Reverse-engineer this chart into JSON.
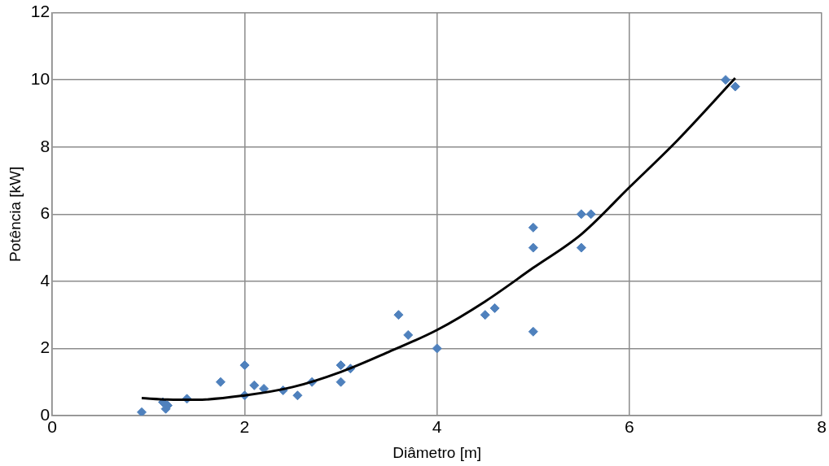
{
  "chart_data": {
    "type": "scatter",
    "xlabel": "Diâmetro [m]",
    "ylabel": "Potência [kW]",
    "xlim": [
      0,
      8
    ],
    "xticks": [
      0,
      2,
      4,
      6,
      8
    ],
    "ylim": [
      0,
      12
    ],
    "yticks": [
      0,
      2,
      4,
      6,
      8,
      10,
      12
    ],
    "grid": true,
    "legend": false,
    "marker": "diamond",
    "series": [
      {
        "color": "#4f81bd",
        "x": [
          0.93,
          1.15,
          1.18,
          1.2,
          1.4,
          1.75,
          2.0,
          2.0,
          2.1,
          2.2,
          2.4,
          2.55,
          2.7,
          3.0,
          3.0,
          3.1,
          3.6,
          3.7,
          4.0,
          4.5,
          4.6,
          5.0,
          5.0,
          5.0,
          5.5,
          5.5,
          5.6,
          7.0,
          7.1
        ],
        "values": [
          0.1,
          0.4,
          0.2,
          0.3,
          0.5,
          1.0,
          1.5,
          0.6,
          0.9,
          0.8,
          0.75,
          0.6,
          1.0,
          1.5,
          1.0,
          1.4,
          3.0,
          2.4,
          2.0,
          3.0,
          3.2,
          5.6,
          5.0,
          2.5,
          6.0,
          5.0,
          6.0,
          10.0,
          9.8
        ]
      },
      {
        "type": "line",
        "color": "#000000",
        "marker": "none",
        "line_style": "solid",
        "x": [
          0.93,
          1.2,
          1.5,
          2,
          2.5,
          3,
          3.5,
          4,
          4.5,
          5,
          5.5,
          6,
          6.5,
          7.1
        ],
        "values": [
          0.52,
          0.48,
          0.47,
          0.6,
          0.85,
          1.3,
          1.9,
          2.55,
          3.4,
          4.4,
          5.4,
          6.8,
          8.2,
          10.05
        ]
      }
    ]
  }
}
